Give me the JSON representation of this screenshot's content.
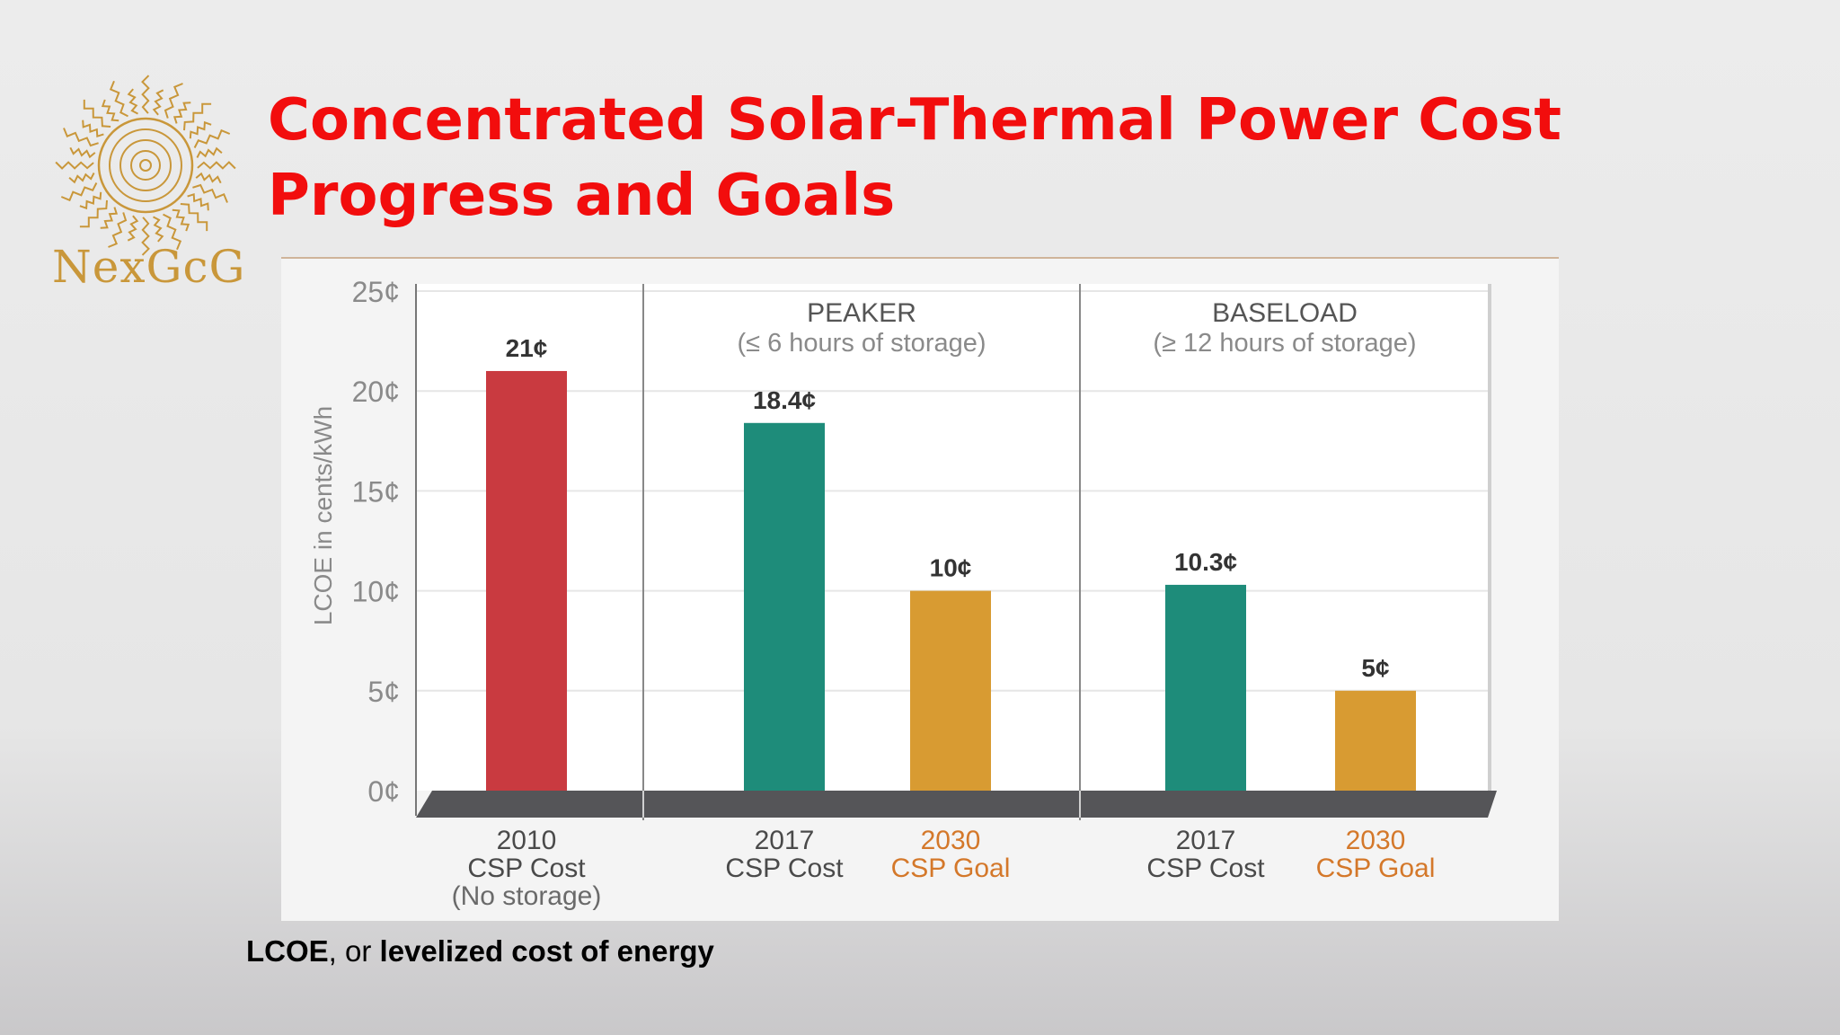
{
  "logo": {
    "name": "NexGcG",
    "icon": "sun-icon"
  },
  "slide": {
    "title": "Concentrated Solar-Thermal Power Cost Progress and Goals"
  },
  "footnote": {
    "term": "LCOE",
    "connector": ", or ",
    "definition": "levelized cost of energy"
  },
  "colors": {
    "title": "#f20d0d",
    "red": "#c93a40",
    "teal": "#1e8c7a",
    "gold": "#d89b32",
    "base": "#555558",
    "goal_text": "#d4782a"
  },
  "chart_data": {
    "type": "bar",
    "ylabel": "LCOE in cents/kWh",
    "ylim": [
      0,
      25
    ],
    "yticks": [
      "0¢",
      "5¢",
      "10¢",
      "15¢",
      "20¢",
      "25¢"
    ],
    "ytick_values": [
      0,
      5,
      10,
      15,
      20,
      25
    ],
    "grid": true,
    "sections": [
      {
        "title": "",
        "subtitle": ""
      },
      {
        "title": "PEAKER",
        "subtitle": "(≤ 6 hours of storage)"
      },
      {
        "title": "BASELOAD",
        "subtitle": "(≥ 12 hours of storage)"
      }
    ],
    "bars": [
      {
        "section": 0,
        "value": 21,
        "label": "21¢",
        "color": "#c93a40",
        "category": [
          "2010",
          "CSP Cost",
          "(No storage)"
        ],
        "goal": false
      },
      {
        "section": 1,
        "value": 18.4,
        "label": "18.4¢",
        "color": "#1e8c7a",
        "category": [
          "2017",
          "CSP Cost"
        ],
        "goal": false
      },
      {
        "section": 1,
        "value": 10,
        "label": "10¢",
        "color": "#d89b32",
        "category": [
          "2030",
          "CSP Goal"
        ],
        "goal": true
      },
      {
        "section": 2,
        "value": 10.3,
        "label": "10.3¢",
        "color": "#1e8c7a",
        "category": [
          "2017",
          "CSP Cost"
        ],
        "goal": false
      },
      {
        "section": 2,
        "value": 5,
        "label": "5¢",
        "color": "#d89b32",
        "category": [
          "2030",
          "CSP Goal"
        ],
        "goal": true
      }
    ]
  }
}
